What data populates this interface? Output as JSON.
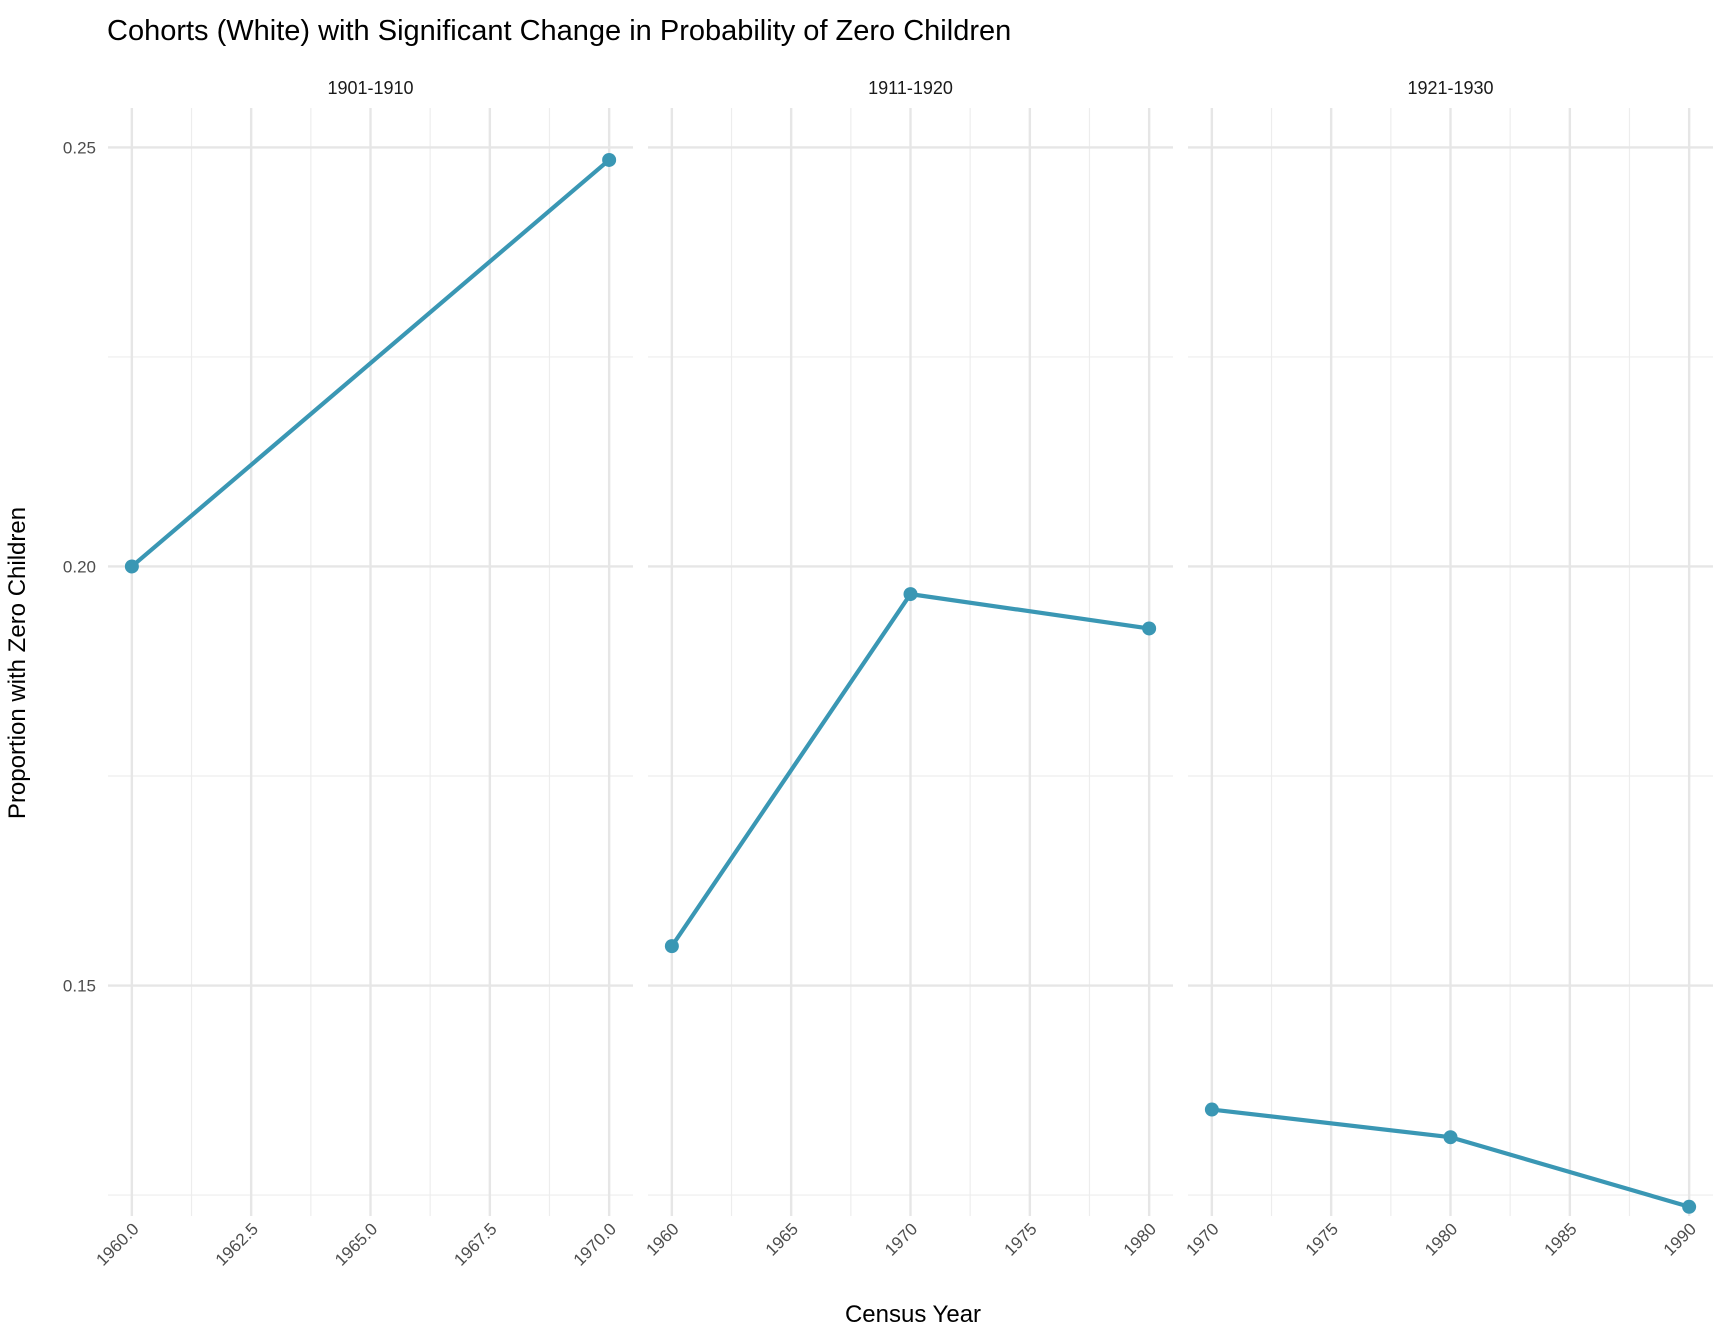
{
  "chart_data": {
    "type": "line",
    "title": "Cohorts (White) with Significant Change in Probability of Zero Children",
    "xlabel": "Census Year",
    "ylabel": "Proportion with Zero Children",
    "ylim": [
      0.1225,
      0.2547
    ],
    "y_ticks": [
      "0.15",
      "0.20",
      "0.25"
    ],
    "y_tick_values": [
      0.15,
      0.2,
      0.25
    ],
    "grid": true,
    "line_color": "#3a97b4",
    "panels": [
      {
        "label": "1901-1910",
        "xlim": [
          1959.5,
          1970.5
        ],
        "x_ticks": [
          "1960.0",
          "1962.5",
          "1965.0",
          "1967.5",
          "1970.0"
        ],
        "x_tick_values": [
          1960,
          1962.5,
          1965,
          1967.5,
          1970
        ],
        "x_minor": [
          1961.25,
          1963.75,
          1966.25,
          1968.75
        ],
        "x": [
          1960,
          1970
        ],
        "y": [
          0.2,
          0.2485
        ]
      },
      {
        "label": "1911-1920",
        "xlim": [
          1959,
          1981
        ],
        "x_ticks": [
          "1960",
          "1965",
          "1970",
          "1975",
          "1980"
        ],
        "x_tick_values": [
          1960,
          1965,
          1970,
          1975,
          1980
        ],
        "x_minor": [
          1962.5,
          1967.5,
          1972.5,
          1977.5
        ],
        "x": [
          1960,
          1970,
          1980
        ],
        "y": [
          0.1547,
          0.1967,
          0.1926
        ]
      },
      {
        "label": "1921-1930",
        "xlim": [
          1969,
          1991
        ],
        "x_ticks": [
          "1970",
          "1975",
          "1980",
          "1985",
          "1990"
        ],
        "x_tick_values": [
          1970,
          1975,
          1980,
          1985,
          1990
        ],
        "x_minor": [
          1972.5,
          1977.5,
          1982.5,
          1987.5
        ],
        "x": [
          1970,
          1980,
          1990
        ],
        "y": [
          0.1352,
          0.1319,
          0.1236
        ]
      }
    ]
  }
}
